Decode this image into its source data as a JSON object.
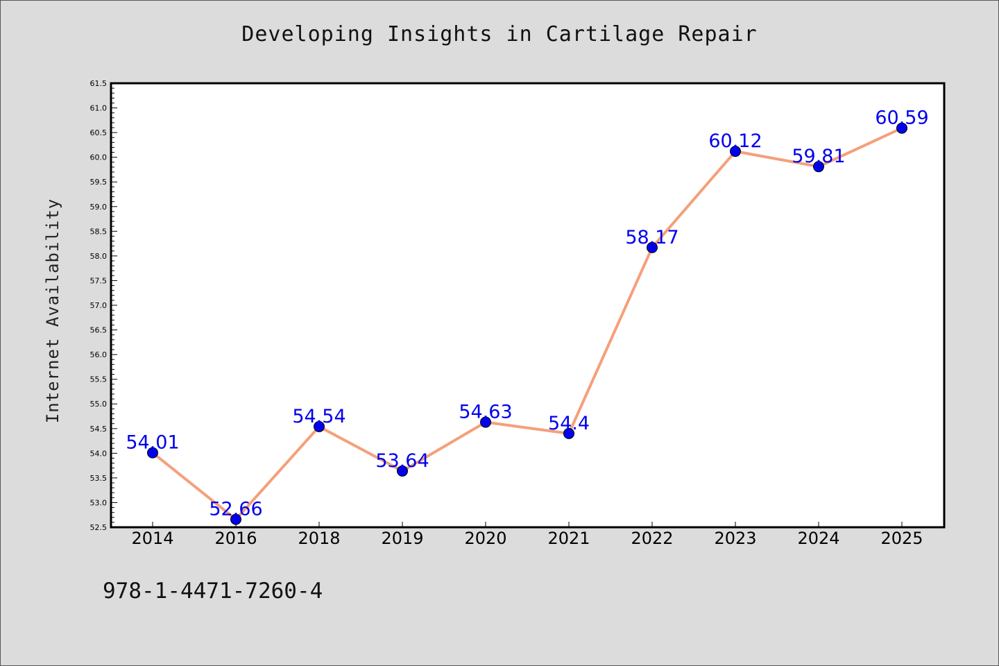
{
  "chart_data": {
    "type": "line",
    "title": "Developing Insights in Cartilage Repair",
    "xlabel": "",
    "ylabel": "Internet Availability",
    "categories": [
      "2014",
      "2016",
      "2018",
      "2019",
      "2020",
      "2021",
      "2022",
      "2023",
      "2024",
      "2025"
    ],
    "series": [
      {
        "values": [
          54.01,
          52.66,
          54.54,
          53.64,
          54.63,
          54.4,
          58.17,
          60.12,
          59.81,
          60.59
        ],
        "data_labels": [
          "54.01",
          "52.66",
          "54.54",
          "53.64",
          "54.63",
          "54.4",
          "58.17",
          "60.12",
          "59.81",
          "60.59"
        ],
        "line_color": "#f4a07a",
        "marker_color": "#0000ee"
      }
    ],
    "ylim": [
      52.5,
      61.5
    ],
    "yticks": [
      52.5,
      53.0,
      53.5,
      54.0,
      54.5,
      55.0,
      55.5,
      56.0,
      56.5,
      57.0,
      57.5,
      58.0,
      58.5,
      59.0,
      59.5,
      60.0,
      60.5,
      61.0,
      61.5
    ],
    "ytick_labels": [
      "52.5",
      "53.0",
      "53.5",
      "54.0",
      "54.5",
      "55.0",
      "55.5",
      "56.0",
      "56.5",
      "57.0",
      "57.5",
      "58.0",
      "58.5",
      "59.0",
      "59.5",
      "60.0",
      "60.5",
      "61.0",
      "61.5"
    ],
    "grid": false,
    "legend": "none"
  },
  "footer": {
    "isbn": "978-1-4471-7260-4"
  },
  "colors": {
    "background": "#dcdcdc",
    "plot_background": "#ffffff",
    "line": "#f4a07a",
    "marker": "#0000ee",
    "data_label": "#0000ee"
  }
}
